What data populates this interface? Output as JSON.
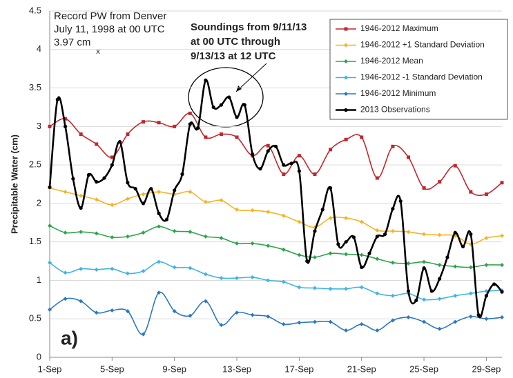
{
  "chart_data": {
    "type": "line",
    "y_label": "Precipitable Water (cm)",
    "panel_label": "a)",
    "record_note": {
      "lines": [
        "Record PW from Denver",
        "July 11, 1998 at 00 UTC",
        "3.97 cm"
      ],
      "color": "#d0312d",
      "marker": "x",
      "x": 4.1,
      "y": 3.97
    },
    "soundings_note": [
      "Soundings from 9/11/13",
      "at 00 UTC through",
      "9/13/13  at 12 UTC"
    ],
    "xlim": [
      1,
      30
    ],
    "xticks": [
      {
        "value": 1,
        "label": "1-Sep"
      },
      {
        "value": 5,
        "label": "5-Sep"
      },
      {
        "value": 9,
        "label": "9-Sep"
      },
      {
        "value": 13,
        "label": "13-Sep"
      },
      {
        "value": 17,
        "label": "17-Sep"
      },
      {
        "value": 21,
        "label": "21-Sep"
      },
      {
        "value": 25,
        "label": "25-Sep"
      },
      {
        "value": 29,
        "label": "29-Sep"
      }
    ],
    "ylim": [
      0,
      4.5
    ],
    "yticks": [
      0,
      0.5,
      1,
      1.5,
      2,
      2.5,
      3,
      3.5,
      4,
      4.5
    ],
    "grid": true,
    "legend": "upper right",
    "series": [
      {
        "name": "1946-2012 Maximum",
        "color": "#c0272d",
        "marker": "square",
        "x": [
          1,
          2,
          3,
          4,
          5,
          6,
          7,
          8,
          9,
          10,
          11,
          12,
          13,
          14,
          15,
          16,
          17,
          18,
          19,
          20,
          21,
          22,
          23,
          24,
          25,
          26,
          27,
          28,
          29,
          30
        ],
        "values": [
          3.0,
          3.1,
          2.9,
          2.77,
          2.6,
          2.9,
          3.06,
          3.05,
          3.0,
          3.17,
          2.86,
          2.9,
          2.86,
          2.62,
          2.75,
          2.38,
          2.62,
          2.38,
          2.7,
          2.83,
          2.86,
          2.33,
          2.74,
          2.6,
          2.2,
          2.28,
          2.49,
          2.15,
          2.12,
          2.27
        ]
      },
      {
        "name": "1946-2012 +1 Standard Deviation",
        "color": "#f5b324",
        "marker": "diamond",
        "x": [
          1,
          2,
          3,
          4,
          5,
          6,
          7,
          8,
          9,
          10,
          11,
          12,
          13,
          14,
          15,
          16,
          17,
          18,
          19,
          20,
          21,
          22,
          23,
          24,
          25,
          26,
          27,
          28,
          29,
          30
        ],
        "values": [
          2.2,
          2.15,
          2.1,
          2.05,
          1.98,
          2.06,
          2.12,
          2.15,
          2.12,
          2.15,
          2.02,
          2.04,
          1.92,
          1.91,
          1.89,
          1.84,
          1.76,
          1.69,
          1.81,
          1.81,
          1.76,
          1.65,
          1.64,
          1.63,
          1.6,
          1.59,
          1.58,
          1.47,
          1.55,
          1.58
        ]
      },
      {
        "name": "1946-2012 Mean",
        "color": "#2ca54a",
        "marker": "diamond",
        "x": [
          1,
          2,
          3,
          4,
          5,
          6,
          7,
          8,
          9,
          10,
          11,
          12,
          13,
          14,
          15,
          16,
          17,
          18,
          19,
          20,
          21,
          22,
          23,
          24,
          25,
          26,
          27,
          28,
          29,
          30
        ],
        "values": [
          1.71,
          1.62,
          1.63,
          1.61,
          1.56,
          1.57,
          1.62,
          1.7,
          1.64,
          1.63,
          1.57,
          1.55,
          1.48,
          1.48,
          1.45,
          1.4,
          1.33,
          1.3,
          1.35,
          1.34,
          1.33,
          1.28,
          1.23,
          1.22,
          1.24,
          1.2,
          1.18,
          1.17,
          1.2,
          1.2
        ]
      },
      {
        "name": "1946-2012 -1 Standard Deviation",
        "color": "#3cb4e6",
        "marker": "diamond",
        "x": [
          1,
          2,
          3,
          4,
          5,
          6,
          7,
          8,
          9,
          10,
          11,
          12,
          13,
          14,
          15,
          16,
          17,
          18,
          19,
          20,
          21,
          22,
          23,
          24,
          25,
          26,
          27,
          28,
          29,
          30
        ],
        "values": [
          1.23,
          1.1,
          1.15,
          1.14,
          1.15,
          1.09,
          1.12,
          1.24,
          1.17,
          1.16,
          1.08,
          1.03,
          1.03,
          1.04,
          1.0,
          0.98,
          0.91,
          0.9,
          0.89,
          0.89,
          0.91,
          0.83,
          0.8,
          0.83,
          0.75,
          0.76,
          0.8,
          0.83,
          0.86,
          0.87
        ]
      },
      {
        "name": "1946-2012 Minimum",
        "color": "#2b78c2",
        "marker": "diamond",
        "x": [
          1,
          2,
          3,
          4,
          5,
          6,
          7,
          8,
          9,
          10,
          11,
          12,
          13,
          14,
          15,
          16,
          17,
          18,
          19,
          20,
          21,
          22,
          23,
          24,
          25,
          26,
          27,
          28,
          29,
          30
        ],
        "values": [
          0.62,
          0.76,
          0.73,
          0.58,
          0.61,
          0.6,
          0.3,
          0.84,
          0.6,
          0.54,
          0.73,
          0.42,
          0.58,
          0.55,
          0.53,
          0.43,
          0.45,
          0.46,
          0.46,
          0.35,
          0.43,
          0.35,
          0.48,
          0.52,
          0.46,
          0.37,
          0.46,
          0.53,
          0.5,
          0.52
        ]
      },
      {
        "name": "2013 Observations",
        "color": "#000000",
        "marker": "circle",
        "x": [
          1,
          1.5,
          2,
          2.5,
          3,
          3.5,
          4,
          4.5,
          5,
          5.5,
          6,
          6.5,
          7,
          7.5,
          8,
          8.5,
          9,
          9.5,
          10,
          10.5,
          11,
          11.5,
          12,
          12.5,
          13,
          13.5,
          14,
          14.5,
          15,
          15.5,
          16,
          16.5,
          17,
          17.5,
          18,
          18.5,
          19,
          19.5,
          20,
          20.5,
          21,
          21.5,
          22,
          22.5,
          23,
          23.5,
          24,
          24.5,
          25,
          25.5,
          26,
          26.5,
          27,
          27.5,
          28,
          28.5,
          29,
          29.5,
          30
        ],
        "values": [
          2.21,
          3.35,
          3.0,
          2.32,
          1.94,
          2.37,
          2.28,
          2.33,
          2.5,
          2.8,
          2.27,
          2.19,
          2.0,
          2.19,
          1.87,
          1.79,
          2.17,
          2.38,
          3.03,
          2.98,
          3.6,
          3.25,
          3.28,
          3.38,
          3.12,
          3.28,
          2.64,
          2.45,
          2.68,
          2.74,
          2.5,
          2.52,
          2.42,
          1.25,
          1.64,
          1.92,
          2.2,
          1.47,
          1.5,
          1.56,
          1.17,
          1.35,
          1.57,
          1.6,
          1.93,
          2.03,
          0.86,
          0.74,
          1.16,
          0.86,
          1.02,
          1.3,
          1.62,
          1.44,
          1.6,
          0.55,
          0.8,
          0.95,
          0.85
        ]
      }
    ]
  }
}
